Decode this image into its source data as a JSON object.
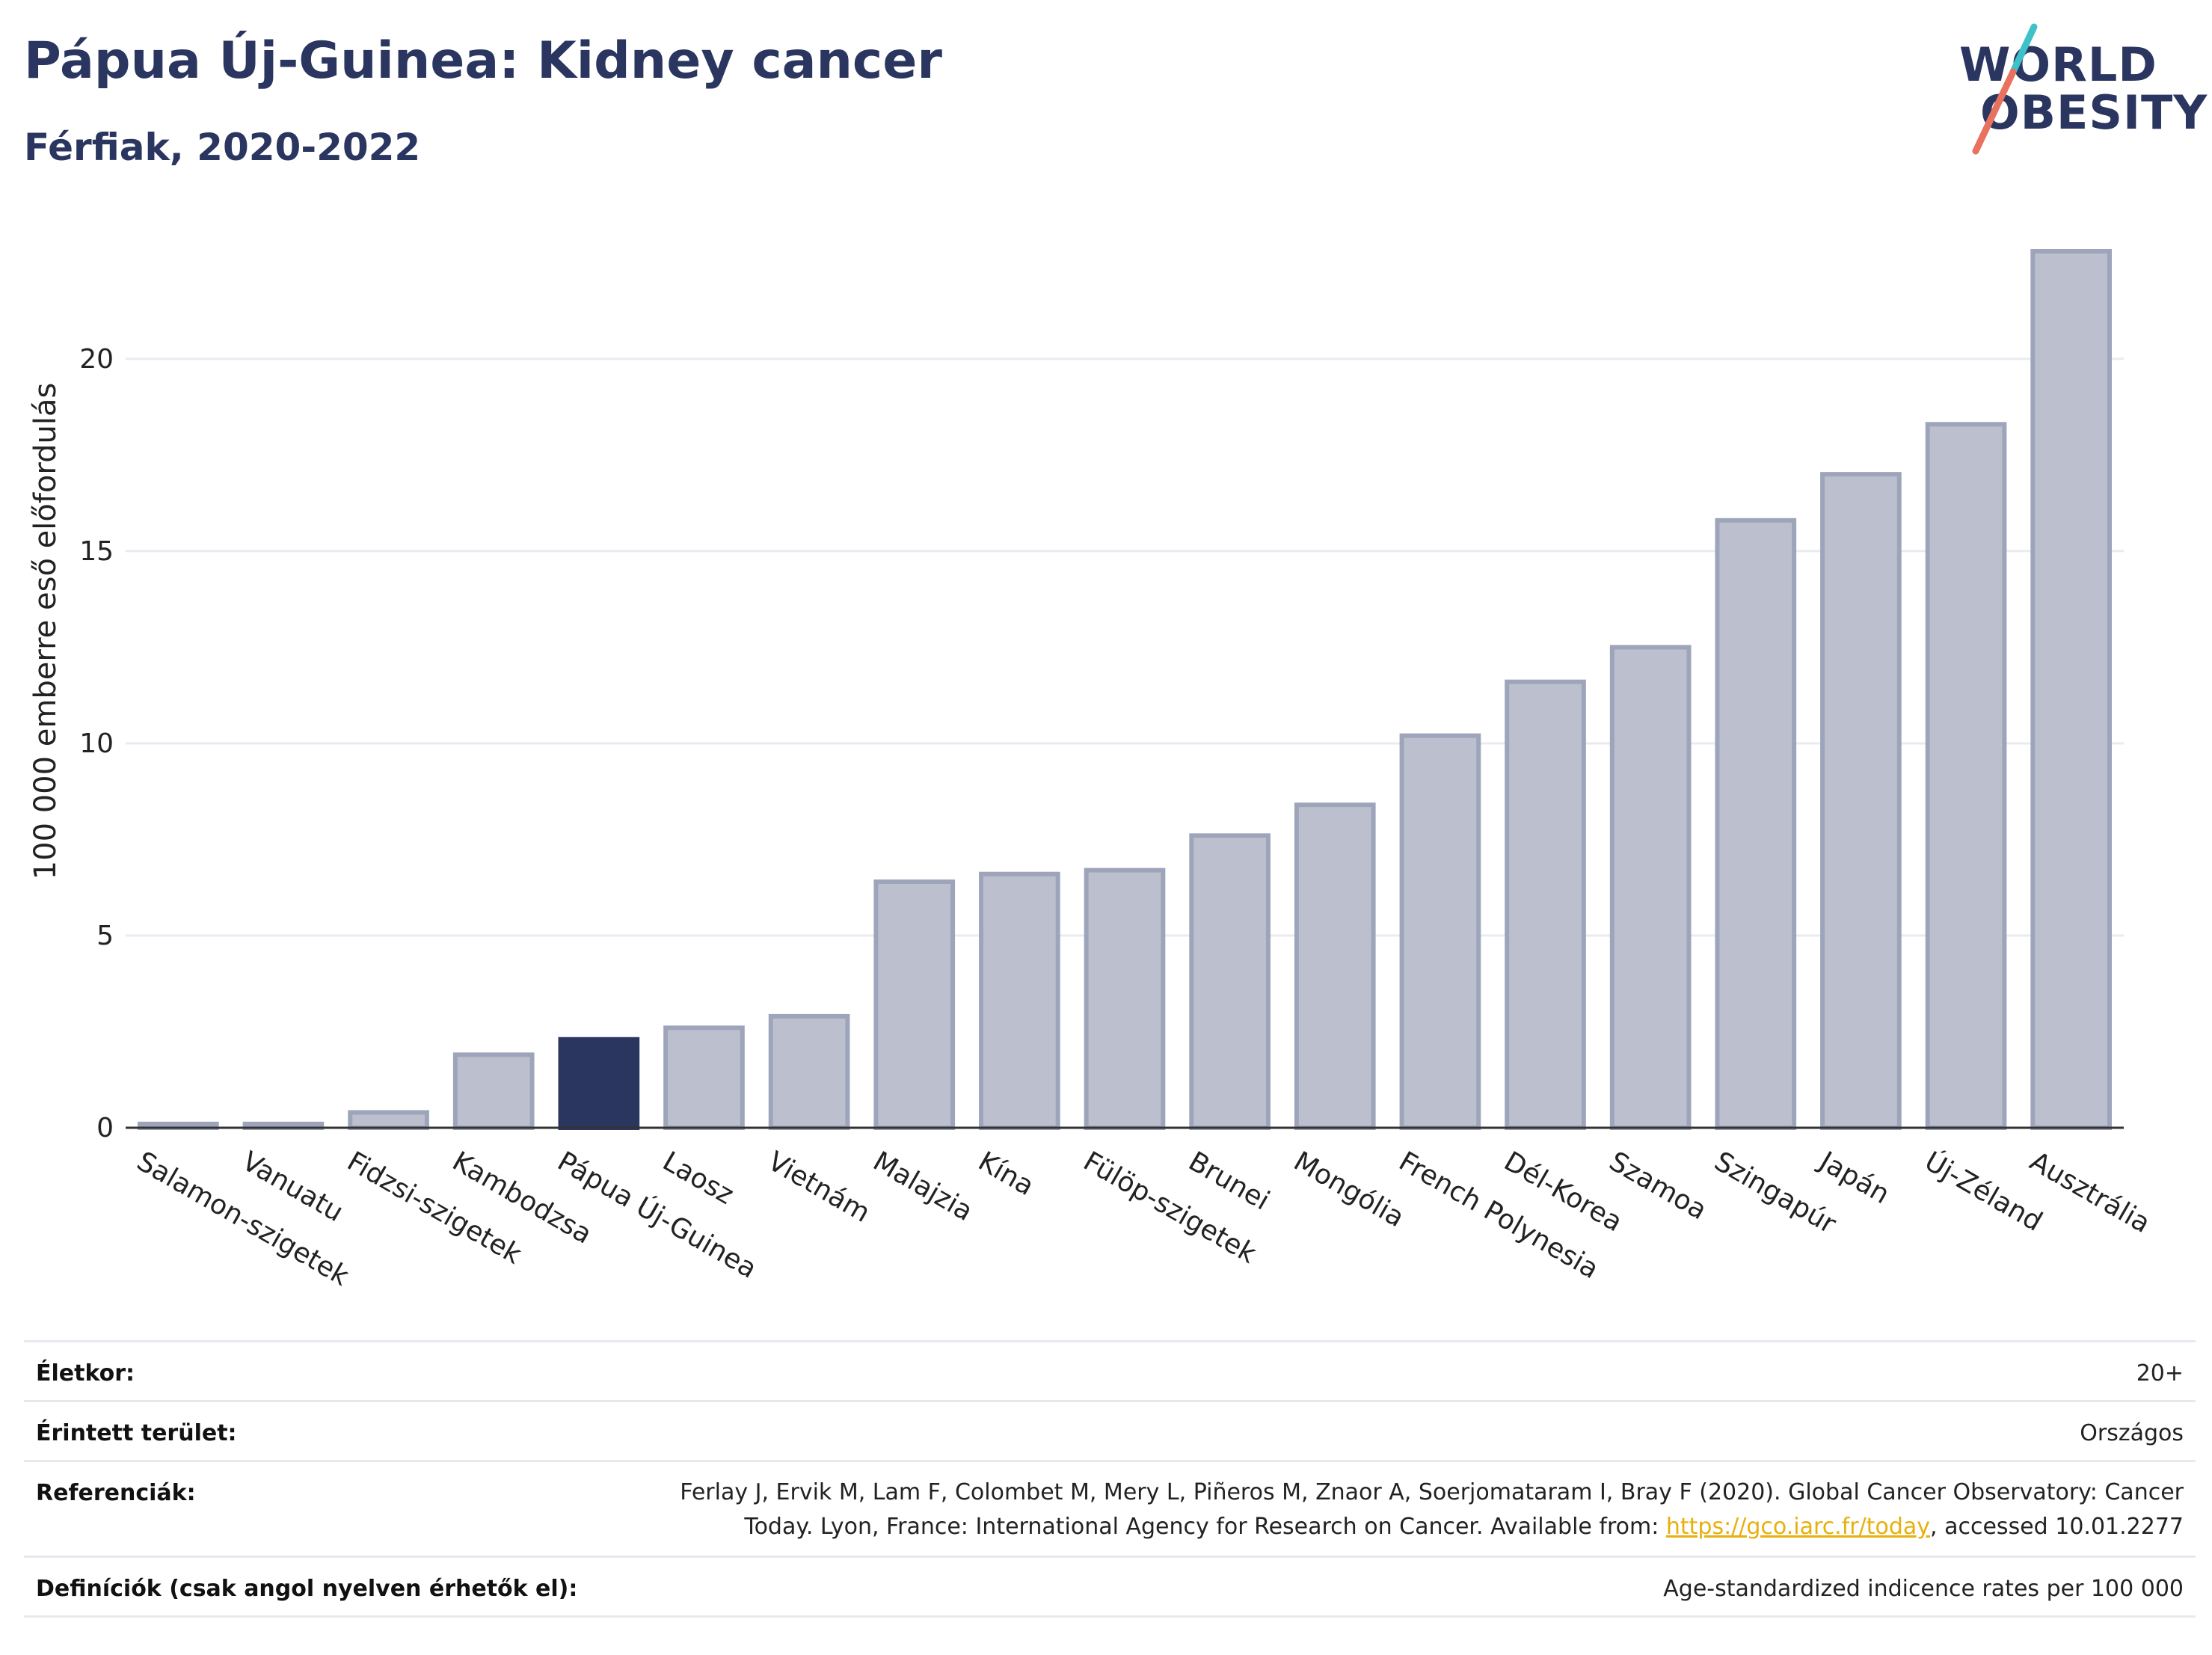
{
  "header": {
    "title": "Pápua Új-Guinea: Kidney cancer",
    "subtitle": "Férfiak, 2020-2022"
  },
  "logo": {
    "line1": "WORLD",
    "line2": "OBESITY",
    "slash_color": "#e8715f",
    "slash_top_color": "#3ec1c8"
  },
  "chart_data": {
    "type": "bar",
    "title": "Pápua Új-Guinea: Kidney cancer",
    "subtitle": "Férfiak, 2020-2022",
    "ylabel": "100 000 emberre eső előfordulás",
    "xlabel": "",
    "ylim": [
      0,
      23.5
    ],
    "yticks": [
      0,
      5,
      10,
      15,
      20
    ],
    "grid": true,
    "categories": [
      "Salamon-szigetek",
      "Vanuatu",
      "Fidzsi-szigetek",
      "Kambodzsa",
      "Pápua Új-Guinea",
      "Laosz",
      "Vietnám",
      "Malajzia",
      "Kína",
      "Fülöp-szigetek",
      "Brunei",
      "Mongólia",
      "French Polynesia",
      "Dél-Korea",
      "Szamoa",
      "Szingapúr",
      "Japán",
      "Új-Zéland",
      "Ausztrália"
    ],
    "values": [
      0.1,
      0.1,
      0.4,
      1.9,
      2.3,
      2.6,
      2.9,
      6.4,
      6.6,
      6.7,
      7.6,
      8.4,
      10.2,
      11.6,
      12.5,
      15.8,
      17.0,
      18.3,
      22.8
    ],
    "highlight": "Pápua Új-Guinea",
    "colors": {
      "bar": "#bcc0ce",
      "bar_edge": "#9ea5bb",
      "highlight": "#2a3660",
      "grid": "#e8ebf0",
      "axis": "#333333"
    }
  },
  "info": {
    "age_label": "Életkor:",
    "age_value": "20+",
    "area_label": "Érintett terület:",
    "area_value": "Országos",
    "ref_label": "Referenciák:",
    "ref_text_1": "Ferlay J, Ervik M, Lam F, Colombet M, Mery L, Piñeros M, Znaor A, Soerjomataram I, Bray F (2020). Global Cancer Observatory: Cancer Today. Lyon, France: International Agency for Research on Cancer. Available from: ",
    "ref_link": "https://gco.iarc.fr/today",
    "ref_text_2": ", accessed 10.01.2277",
    "def_label": "Definíciók (csak angol nyelven érhetők el):",
    "def_value": "Age-standardized indicence rates per 100 000"
  }
}
